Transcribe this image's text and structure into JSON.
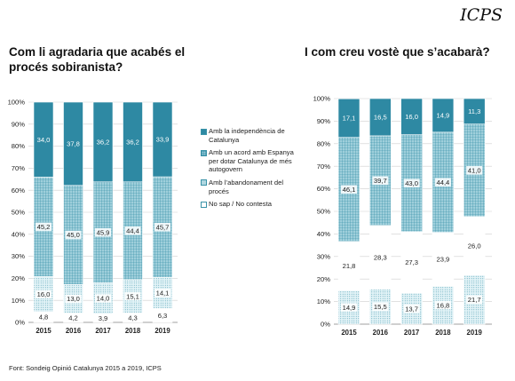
{
  "logo": "ICPS",
  "charts": {
    "left": {
      "title": "Com li agradaria que acabés el procés sobiranista?"
    },
    "right": {
      "title": "I com creu vostè que s’acabarà?"
    }
  },
  "legend": [
    {
      "label": "Amb la independència de Catalunya",
      "color": "#2e89a3",
      "pattern": "solid"
    },
    {
      "label": "Amb un acord amb Espanya per dotar Catalunya de més autogovern",
      "color": "#9fcfdb",
      "pattern": "grid"
    },
    {
      "label": "Amb l’abandonament del procés",
      "color": "#d8eef3",
      "pattern": "dots"
    },
    {
      "label": "No sap / No contesta",
      "color": "#ffffff",
      "pattern": "none"
    }
  ],
  "source": "Font: Sondeig Opinió Catalunya 2015 a 2019, ICPS",
  "chart_data": [
    {
      "type": "bar",
      "stacked": true,
      "title": "Com li agradaria que acabés el procés sobiranista?",
      "categories": [
        "2015",
        "2016",
        "2017",
        "2018",
        "2019"
      ],
      "y_ticks": [
        "0%",
        "10%",
        "20%",
        "30%",
        "40%",
        "50%",
        "60%",
        "70%",
        "80%",
        "90%",
        "100%"
      ],
      "ylim": [
        0,
        100
      ],
      "series": [
        {
          "name": "No sap / No contesta",
          "values": [
            4.8,
            4.2,
            3.9,
            4.3,
            6.3
          ],
          "labels": [
            "4,8",
            "4,2",
            "3,9",
            "4,3",
            "6,3"
          ]
        },
        {
          "name": "Amb l’abandonament del procés",
          "values": [
            16.0,
            13.0,
            14.0,
            15.1,
            14.1
          ],
          "labels": [
            "16,0",
            "13,0",
            "14,0",
            "15,1",
            "14,1"
          ]
        },
        {
          "name": "Amb un acord amb Espanya per dotar Catalunya de més autogovern",
          "values": [
            45.2,
            45.0,
            45.9,
            44.4,
            45.7
          ],
          "labels": [
            "45,2",
            "45,0",
            "45,9",
            "44,4",
            "45,7"
          ]
        },
        {
          "name": "Amb la independència de Catalunya",
          "values": [
            34.0,
            37.8,
            36.2,
            36.2,
            33.9
          ],
          "labels": [
            "34,0",
            "37,8",
            "36,2",
            "36,2",
            "33,9"
          ]
        }
      ]
    },
    {
      "type": "bar",
      "stacked": true,
      "title": "I com creu vostè que s’acabarà?",
      "categories": [
        "2015",
        "2016",
        "2017",
        "2018",
        "2019"
      ],
      "y_ticks": [
        "0%",
        "10%",
        "20%",
        "30%",
        "40%",
        "50%",
        "60%",
        "70%",
        "80%",
        "90%",
        "100%"
      ],
      "ylim": [
        0,
        100
      ],
      "series": [
        {
          "name": "Amb l’abandonament del procés",
          "values": [
            14.9,
            15.5,
            13.7,
            16.8,
            21.7
          ],
          "labels": [
            "14,9",
            "15,5",
            "13,7",
            "16,8",
            "21,7"
          ]
        },
        {
          "name": "No sap / No contesta",
          "values": [
            21.8,
            28.3,
            27.3,
            23.9,
            26.0
          ],
          "labels": [
            "21,8",
            "28,3",
            "27,3",
            "23,9",
            "26,0"
          ]
        },
        {
          "name": "Amb un acord amb Espanya per dotar Catalunya de més autogovern",
          "values": [
            46.1,
            39.7,
            43.0,
            44.4,
            41.0
          ],
          "labels": [
            "46,1",
            "39,7",
            "43,0",
            "44,4",
            "41,0"
          ]
        },
        {
          "name": "Amb la independència de Catalunya",
          "values": [
            17.1,
            16.5,
            16.0,
            14.9,
            11.3
          ],
          "labels": [
            "17,1",
            "16,5",
            "16,0",
            "14,9",
            "11,3"
          ]
        }
      ]
    }
  ]
}
